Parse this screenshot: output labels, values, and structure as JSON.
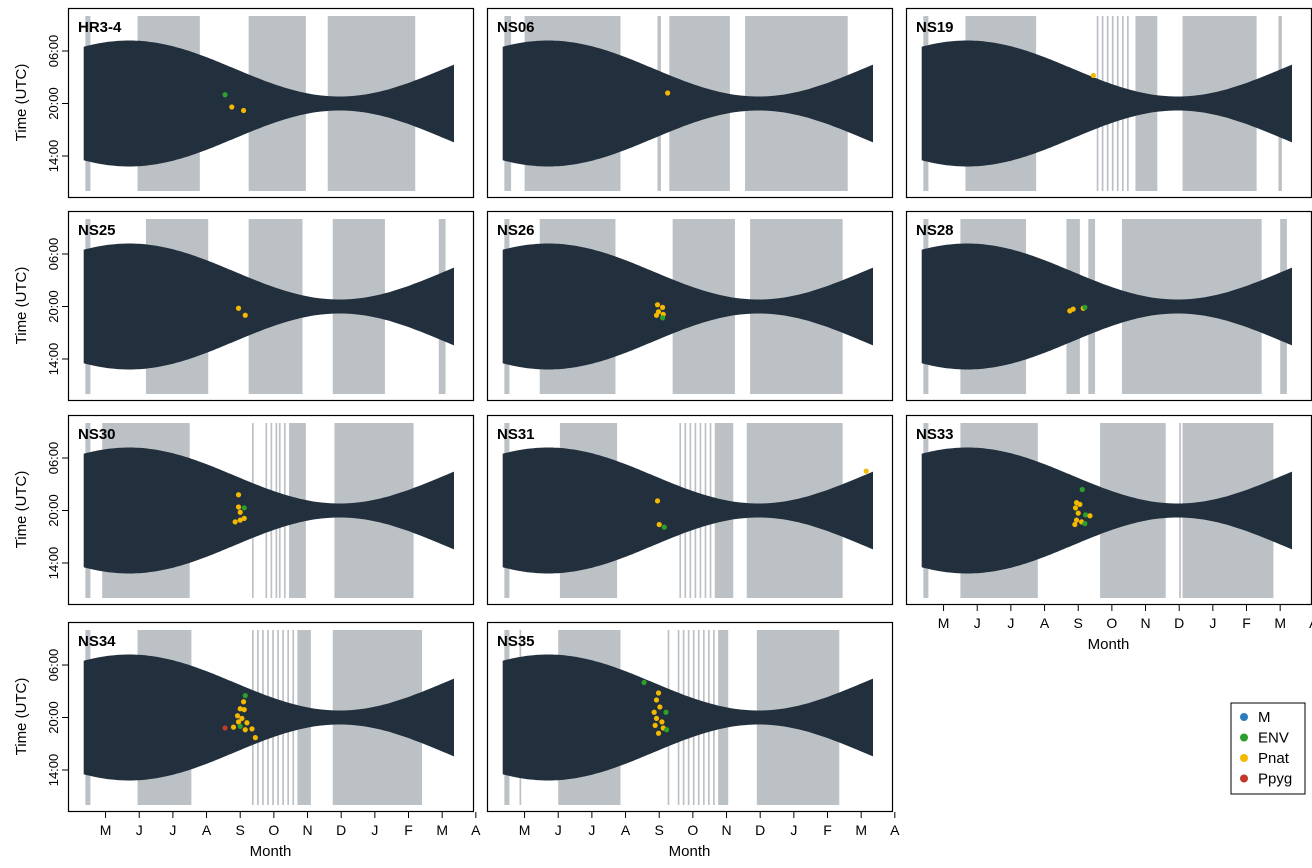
{
  "colors": {
    "night_band": "#222f3d",
    "recording_gap": "#bcc1c6",
    "frame": "#000000",
    "M": "#2e7bbf",
    "ENV": "#2ca02c",
    "Pnat": "#f5b800",
    "Ppyg": "#c0392b"
  },
  "legend": {
    "items": [
      {
        "key": "M",
        "label": "M"
      },
      {
        "key": "ENV",
        "label": "ENV"
      },
      {
        "key": "Pnat",
        "label": "Pnat"
      },
      {
        "key": "Ppyg",
        "label": "Ppyg"
      }
    ]
  },
  "chart_data": {
    "type": "scatter",
    "ylabel": "Time (UTC)",
    "xlabel": "Month",
    "x_tick_labels": [
      "M",
      "J",
      "J",
      "A",
      "S",
      "O",
      "N",
      "D",
      "J",
      "F",
      "M",
      "A"
    ],
    "y_tick_labels": [
      "06:00",
      "20:00",
      "14:00"
    ],
    "panels": [
      {
        "name": "HR3-4",
        "gaps": [
          [
            0.4,
            0.55
          ],
          [
            1.95,
            3.8
          ],
          [
            5.25,
            6.95
          ],
          [
            7.6,
            10.2
          ]
        ],
        "points": [
          {
            "s": "ENV",
            "m": 4.55,
            "t": -1.0
          },
          {
            "s": "Pnat",
            "m": 4.75,
            "t": 0.4
          },
          {
            "s": "Pnat",
            "m": 5.1,
            "t": 0.8
          }
        ]
      },
      {
        "name": "NS06",
        "gaps": [
          [
            0.4,
            0.6
          ],
          [
            1.0,
            3.85
          ],
          [
            4.95,
            5.05
          ],
          [
            5.3,
            7.1
          ],
          [
            7.55,
            10.6
          ]
        ],
        "points": [
          {
            "s": "Pnat",
            "m": 5.25,
            "t": -1.2
          }
        ]
      },
      {
        "name": "NS19",
        "gaps": [
          [
            0.4,
            0.55
          ],
          [
            1.65,
            3.75
          ],
          [
            5.55,
            5.6
          ],
          [
            5.7,
            5.75
          ],
          [
            5.85,
            5.9
          ],
          [
            6.0,
            6.05
          ],
          [
            6.15,
            6.2
          ],
          [
            6.3,
            6.35
          ],
          [
            6.45,
            6.5
          ],
          [
            6.7,
            7.35
          ],
          [
            8.1,
            10.3
          ],
          [
            10.95,
            11.05
          ]
        ],
        "points": [
          {
            "s": "Pnat",
            "m": 5.45,
            "t": -3.2
          }
        ]
      },
      {
        "name": "NS25",
        "gaps": [
          [
            0.4,
            0.55
          ],
          [
            2.2,
            4.05
          ],
          [
            5.25,
            6.85
          ],
          [
            7.75,
            9.3
          ],
          [
            10.9,
            11.1
          ]
        ],
        "points": [
          {
            "s": "Pnat",
            "m": 4.95,
            "t": 0.2
          },
          {
            "s": "Pnat",
            "m": 5.15,
            "t": 1.0
          }
        ]
      },
      {
        "name": "NS26",
        "gaps": [
          [
            0.4,
            0.55
          ],
          [
            1.45,
            3.7
          ],
          [
            5.4,
            7.25
          ],
          [
            7.7,
            10.45
          ]
        ],
        "points": [
          {
            "s": "Pnat",
            "m": 4.95,
            "t": -0.2
          },
          {
            "s": "Pnat",
            "m": 5.1,
            "t": 0.1
          },
          {
            "s": "Pnat",
            "m": 4.98,
            "t": 0.6
          },
          {
            "s": "Pnat",
            "m": 5.12,
            "t": 0.9
          },
          {
            "s": "ENV",
            "m": 5.1,
            "t": 1.3
          },
          {
            "s": "Pnat",
            "m": 4.92,
            "t": 1.0
          }
        ]
      },
      {
        "name": "NS28",
        "gaps": [
          [
            0.4,
            0.55
          ],
          [
            1.5,
            3.45
          ],
          [
            4.65,
            5.05
          ],
          [
            5.3,
            5.5
          ],
          [
            6.3,
            10.45
          ],
          [
            11.0,
            11.2
          ]
        ],
        "points": [
          {
            "s": "Pnat",
            "m": 4.75,
            "t": 0.5
          },
          {
            "s": "Pnat",
            "m": 4.85,
            "t": 0.3
          },
          {
            "s": "Pnat",
            "m": 5.15,
            "t": 0.2
          },
          {
            "s": "ENV",
            "m": 5.2,
            "t": 0.1
          }
        ]
      },
      {
        "name": "NS30",
        "gaps": [
          [
            0.4,
            0.55
          ],
          [
            0.9,
            3.5
          ],
          [
            5.35,
            5.4
          ],
          [
            5.75,
            5.8
          ],
          [
            5.9,
            5.95
          ],
          [
            6.05,
            6.1
          ],
          [
            6.15,
            6.2
          ],
          [
            6.3,
            6.35
          ],
          [
            6.45,
            6.95
          ],
          [
            7.8,
            10.15
          ]
        ],
        "points": [
          {
            "s": "Pnat",
            "m": 4.95,
            "t": -1.8
          },
          {
            "s": "Pnat",
            "m": 4.95,
            "t": -0.4
          },
          {
            "s": "Pnat",
            "m": 5.0,
            "t": 0.2
          },
          {
            "s": "ENV",
            "m": 5.12,
            "t": -0.3
          },
          {
            "s": "Pnat",
            "m": 4.85,
            "t": 1.3
          },
          {
            "s": "Pnat",
            "m": 5.0,
            "t": 1.1
          },
          {
            "s": "Pnat",
            "m": 5.12,
            "t": 0.9
          }
        ]
      },
      {
        "name": "NS31",
        "gaps": [
          [
            0.4,
            0.55
          ],
          [
            2.05,
            3.75
          ],
          [
            5.6,
            5.65
          ],
          [
            5.75,
            5.8
          ],
          [
            5.9,
            5.95
          ],
          [
            6.05,
            6.1
          ],
          [
            6.2,
            6.25
          ],
          [
            6.35,
            6.4
          ],
          [
            6.5,
            6.55
          ],
          [
            6.65,
            7.2
          ],
          [
            7.6,
            10.45
          ]
        ],
        "points": [
          {
            "s": "Pnat",
            "m": 4.95,
            "t": -1.1
          },
          {
            "s": "Pnat",
            "m": 5.0,
            "t": 1.6
          },
          {
            "s": "ENV",
            "m": 5.15,
            "t": 1.9
          },
          {
            "s": "Pnat",
            "m": 11.15,
            "t": -4.5
          }
        ]
      },
      {
        "name": "NS33",
        "gaps": [
          [
            0.4,
            0.55
          ],
          [
            1.5,
            3.8
          ],
          [
            5.65,
            7.6
          ],
          [
            8.0,
            8.05
          ],
          [
            8.1,
            10.8
          ]
        ],
        "points": [
          {
            "s": "ENV",
            "m": 5.12,
            "t": -2.4
          },
          {
            "s": "Pnat",
            "m": 4.95,
            "t": -0.9
          },
          {
            "s": "Pnat",
            "m": 5.05,
            "t": -0.7
          },
          {
            "s": "Pnat",
            "m": 4.92,
            "t": -0.3
          },
          {
            "s": "Pnat",
            "m": 5.0,
            "t": 0.3
          },
          {
            "s": "ENV",
            "m": 5.22,
            "t": 0.5
          },
          {
            "s": "Pnat",
            "m": 5.35,
            "t": 0.6
          },
          {
            "s": "Pnat",
            "m": 4.95,
            "t": 1.1
          },
          {
            "s": "Pnat",
            "m": 5.1,
            "t": 1.3
          },
          {
            "s": "ENV",
            "m": 5.2,
            "t": 1.5
          },
          {
            "s": "Pnat",
            "m": 4.9,
            "t": 1.6
          }
        ]
      },
      {
        "name": "NS34",
        "gaps": [
          [
            0.4,
            0.55
          ],
          [
            1.95,
            3.55
          ],
          [
            5.35,
            5.4
          ],
          [
            5.5,
            5.55
          ],
          [
            5.65,
            5.7
          ],
          [
            5.8,
            5.85
          ],
          [
            5.95,
            6.0
          ],
          [
            6.1,
            6.15
          ],
          [
            6.25,
            6.3
          ],
          [
            6.4,
            6.45
          ],
          [
            6.55,
            6.6
          ],
          [
            6.7,
            7.1
          ],
          [
            7.75,
            10.4
          ]
        ],
        "points": [
          {
            "s": "ENV",
            "m": 5.15,
            "t": -2.5
          },
          {
            "s": "Pnat",
            "m": 5.1,
            "t": -1.8
          },
          {
            "s": "Pnat",
            "m": 5.0,
            "t": -1.0
          },
          {
            "s": "Pnat",
            "m": 5.12,
            "t": -0.9
          },
          {
            "s": "Pnat",
            "m": 4.92,
            "t": -0.2
          },
          {
            "s": "Pnat",
            "m": 5.05,
            "t": 0.1
          },
          {
            "s": "Pnat",
            "m": 4.95,
            "t": 0.5
          },
          {
            "s": "Pnat",
            "m": 5.2,
            "t": 0.6
          },
          {
            "s": "ENV",
            "m": 5.0,
            "t": 1.0
          },
          {
            "s": "Pnat",
            "m": 4.8,
            "t": 1.1
          },
          {
            "s": "Ppyg",
            "m": 4.55,
            "t": 1.2
          },
          {
            "s": "Pnat",
            "m": 5.15,
            "t": 1.4
          },
          {
            "s": "Pnat",
            "m": 5.35,
            "t": 1.3
          },
          {
            "s": "Pnat",
            "m": 5.45,
            "t": 2.3
          }
        ]
      },
      {
        "name": "NS35",
        "gaps": [
          [
            0.4,
            0.55
          ],
          [
            0.85,
            0.9
          ],
          [
            2.0,
            3.85
          ],
          [
            5.25,
            5.3
          ],
          [
            5.55,
            5.6
          ],
          [
            5.7,
            5.75
          ],
          [
            5.85,
            5.9
          ],
          [
            6.0,
            6.05
          ],
          [
            6.15,
            6.2
          ],
          [
            6.3,
            6.35
          ],
          [
            6.45,
            6.5
          ],
          [
            6.6,
            6.65
          ],
          [
            6.75,
            7.05
          ],
          [
            7.9,
            10.35
          ]
        ],
        "points": [
          {
            "s": "ENV",
            "m": 4.55,
            "t": -4.0
          },
          {
            "s": "Pnat",
            "m": 4.98,
            "t": -2.8
          },
          {
            "s": "Pnat",
            "m": 4.92,
            "t": -2.0
          },
          {
            "s": "Pnat",
            "m": 5.02,
            "t": -1.2
          },
          {
            "s": "Pnat",
            "m": 4.85,
            "t": -0.6
          },
          {
            "s": "ENV",
            "m": 5.2,
            "t": -0.6
          },
          {
            "s": "Pnat",
            "m": 4.92,
            "t": 0.1
          },
          {
            "s": "Pnat",
            "m": 5.08,
            "t": 0.5
          },
          {
            "s": "Pnat",
            "m": 4.88,
            "t": 0.9
          },
          {
            "s": "Pnat",
            "m": 5.12,
            "t": 1.2
          },
          {
            "s": "ENV",
            "m": 5.22,
            "t": 1.4
          },
          {
            "s": "Pnat",
            "m": 4.98,
            "t": 1.8
          }
        ]
      }
    ]
  }
}
